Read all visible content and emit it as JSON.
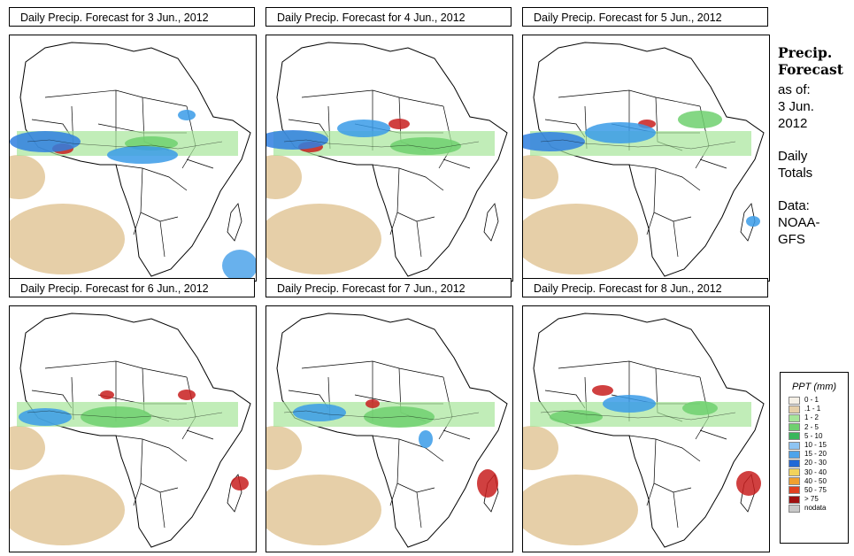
{
  "panels": [
    {
      "title": "Daily Precip. Forecast for  3 Jun., 2012",
      "rain": [
        [
          60,
          128,
          12,
          6,
          "#c81e1e"
        ],
        [
          40,
          120,
          40,
          12,
          "#2f7fe0"
        ],
        [
          160,
          122,
          30,
          8,
          "#6fd06f"
        ],
        [
          150,
          135,
          40,
          10,
          "#3a9be8"
        ],
        [
          260,
          260,
          20,
          18,
          "#4da3ea"
        ],
        [
          200,
          90,
          10,
          6,
          "#3a9be8"
        ]
      ]
    },
    {
      "title": "Daily Precip. Forecast for  4 Jun., 2012",
      "rain": [
        [
          50,
          126,
          14,
          6,
          "#c81e1e"
        ],
        [
          30,
          118,
          40,
          11,
          "#2f7fe0"
        ],
        [
          150,
          100,
          12,
          6,
          "#c81e1e"
        ],
        [
          110,
          105,
          30,
          10,
          "#3a9be8"
        ],
        [
          180,
          125,
          40,
          10,
          "#6fd06f"
        ]
      ]
    },
    {
      "title": "Daily Precip. Forecast for  5 Jun., 2012",
      "rain": [
        [
          140,
          100,
          10,
          5,
          "#c81e1e"
        ],
        [
          30,
          120,
          40,
          11,
          "#2f7fe0"
        ],
        [
          110,
          110,
          40,
          12,
          "#3a9be8"
        ],
        [
          200,
          95,
          25,
          10,
          "#6fd06f"
        ],
        [
          260,
          210,
          8,
          6,
          "#3a9be8"
        ]
      ]
    },
    {
      "title": "Daily Precip. Forecast for  6 Jun., 2012",
      "rain": [
        [
          200,
          100,
          10,
          6,
          "#c81e1e"
        ],
        [
          110,
          100,
          8,
          5,
          "#c81e1e"
        ],
        [
          120,
          125,
          40,
          12,
          "#6fd06f"
        ],
        [
          260,
          200,
          10,
          8,
          "#c81e1e"
        ],
        [
          40,
          125,
          30,
          10,
          "#3a9be8"
        ]
      ]
    },
    {
      "title": "Daily Precip. Forecast for  7 Jun., 2012",
      "rain": [
        [
          250,
          200,
          12,
          16,
          "#c81e1e"
        ],
        [
          60,
          120,
          30,
          10,
          "#3a9be8"
        ],
        [
          120,
          110,
          8,
          5,
          "#c81e1e"
        ],
        [
          150,
          125,
          40,
          12,
          "#6fd06f"
        ],
        [
          180,
          150,
          8,
          10,
          "#3a9be8"
        ]
      ]
    },
    {
      "title": "Daily Precip. Forecast for  8 Jun., 2012",
      "rain": [
        [
          255,
          200,
          14,
          14,
          "#c81e1e"
        ],
        [
          90,
          95,
          12,
          6,
          "#c81e1e"
        ],
        [
          120,
          110,
          30,
          10,
          "#3a9be8"
        ],
        [
          60,
          125,
          30,
          8,
          "#6fd06f"
        ],
        [
          200,
          115,
          20,
          8,
          "#6fd06f"
        ]
      ]
    }
  ],
  "side": {
    "title_line1": "Precip.",
    "title_line2": "Forecast",
    "asof_line1": "as of:",
    "asof_line2": "3 Jun.",
    "asof_line3": "2012",
    "totals_line1": "Daily",
    "totals_line2": "Totals",
    "data_line1": "Data:",
    "data_line2": "NOAA-",
    "data_line3": "GFS"
  },
  "legend": {
    "title": "PPT (mm)",
    "items": [
      {
        "label": "0 - 1",
        "color": "#f5f0e6"
      },
      {
        "label": ".1 - 1",
        "color": "#e6cfa8"
      },
      {
        "label": "1 - 2",
        "color": "#a6e69a"
      },
      {
        "label": "2 - 5",
        "color": "#6fd06f"
      },
      {
        "label": "5 - 10",
        "color": "#38b65b"
      },
      {
        "label": "10 - 15",
        "color": "#8ec4f2"
      },
      {
        "label": "15 - 20",
        "color": "#4da3ea"
      },
      {
        "label": "20 - 30",
        "color": "#2168d6"
      },
      {
        "label": "30 - 40",
        "color": "#f2d35b"
      },
      {
        "label": "40 - 50",
        "color": "#f0a030"
      },
      {
        "label": "50 - 75",
        "color": "#e04020"
      },
      {
        "label": "> 75",
        "color": "#a01010"
      },
      {
        "label": "nodata",
        "color": "#c8c8c8"
      }
    ]
  }
}
